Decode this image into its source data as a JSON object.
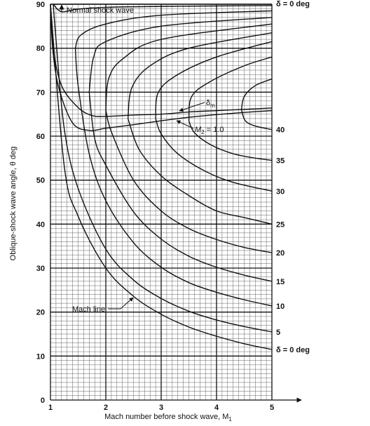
{
  "chart_data": {
    "type": "line",
    "title": "",
    "xlabel": "Mach number before shock wave, M",
    "xlabel_sub": "1",
    "ylabel": "Oblique-shock wave angle, θ deg",
    "xlim": [
      1,
      5
    ],
    "ylim": [
      0,
      90
    ],
    "xticks": [
      "1",
      "2",
      "3",
      "4",
      "5"
    ],
    "yticks": [
      "0",
      "10",
      "20",
      "30",
      "40",
      "50",
      "60",
      "70",
      "80",
      "90"
    ],
    "grid": true,
    "series": [
      {
        "name": "δ = 0 deg",
        "label_top": "δ = 0 deg",
        "label_right": "δ = 0 deg",
        "weak": [
          [
            1.0,
            90
          ],
          [
            1.25,
            53.1
          ],
          [
            1.5,
            41.8
          ],
          [
            2,
            30
          ],
          [
            2.5,
            23.6
          ],
          [
            3,
            19.5
          ],
          [
            3.5,
            16.6
          ],
          [
            4,
            14.5
          ],
          [
            4.5,
            12.8
          ],
          [
            5,
            11.5
          ]
        ],
        "strong": [
          [
            1.0,
            90
          ],
          [
            5,
            90
          ]
        ]
      },
      {
        "name": "5",
        "label_right": "5",
        "weak": [
          [
            1.05,
            90
          ],
          [
            1.1,
            82
          ],
          [
            1.25,
            61.6
          ],
          [
            1.5,
            48.1
          ],
          [
            2,
            34.3
          ],
          [
            2.5,
            27.3
          ],
          [
            3,
            23.1
          ],
          [
            3.5,
            20.2
          ],
          [
            4,
            18.2
          ],
          [
            4.5,
            16.7
          ],
          [
            5,
            15.5
          ]
        ],
        "strong": [
          [
            1.05,
            90
          ],
          [
            1.2,
            88.3
          ],
          [
            1.5,
            88.9
          ],
          [
            2,
            89.3
          ],
          [
            3,
            89.5
          ],
          [
            5,
            89.7
          ]
        ]
      },
      {
        "name": "10",
        "label_right": "10",
        "weak": [
          [
            1.45,
            80
          ],
          [
            1.5,
            71.5
          ],
          [
            1.7,
            56
          ],
          [
            2,
            45.3
          ],
          [
            2.5,
            35.8
          ],
          [
            3,
            30.2
          ],
          [
            3.5,
            26.7
          ],
          [
            4,
            24.5
          ],
          [
            4.5,
            22.8
          ],
          [
            5,
            21.4
          ]
        ],
        "strong": [
          [
            1.45,
            80
          ],
          [
            1.55,
            83
          ],
          [
            2,
            85.5
          ],
          [
            3,
            87.5
          ],
          [
            5,
            88.5
          ]
        ]
      },
      {
        "name": "15",
        "label_right": "15",
        "weak": [
          [
            1.7,
            70
          ],
          [
            1.8,
            59.4
          ],
          [
            2,
            53.4
          ],
          [
            2.5,
            42.8
          ],
          [
            3,
            36.6
          ],
          [
            3.5,
            32.7
          ],
          [
            4,
            30.2
          ],
          [
            4.5,
            28.4
          ],
          [
            5,
            27
          ]
        ],
        "strong": [
          [
            1.7,
            70
          ],
          [
            1.78,
            78
          ],
          [
            2,
            81.5
          ],
          [
            3,
            85
          ],
          [
            5,
            87
          ]
        ]
      },
      {
        "name": "20",
        "label_right": "20",
        "weak": [
          [
            2.0,
            66
          ],
          [
            2.1,
            61
          ],
          [
            2.5,
            50
          ],
          [
            3,
            43
          ],
          [
            3.5,
            39
          ],
          [
            4,
            36.5
          ],
          [
            4.5,
            34.7
          ],
          [
            5,
            33.5
          ]
        ],
        "strong": [
          [
            2.0,
            66
          ],
          [
            2.05,
            73
          ],
          [
            2.3,
            77.5
          ],
          [
            3,
            82
          ],
          [
            5,
            85.5
          ]
        ]
      },
      {
        "name": "25",
        "label_right": "25",
        "weak": [
          [
            2.4,
            64
          ],
          [
            2.6,
            57
          ],
          [
            3,
            51
          ],
          [
            3.5,
            46.5
          ],
          [
            4,
            43
          ],
          [
            4.5,
            41.5
          ],
          [
            5,
            40
          ]
        ],
        "strong": [
          [
            2.4,
            64
          ],
          [
            2.47,
            71
          ],
          [
            2.8,
            76
          ],
          [
            3.5,
            80
          ],
          [
            5,
            83.5
          ]
        ]
      },
      {
        "name": "30",
        "label_right": "30",
        "weak": [
          [
            2.9,
            64
          ],
          [
            3,
            60.5
          ],
          [
            3.3,
            56
          ],
          [
            3.8,
            52
          ],
          [
            4.3,
            49.5
          ],
          [
            5,
            47.5
          ]
        ],
        "strong": [
          [
            2.9,
            64
          ],
          [
            2.95,
            70
          ],
          [
            3.3,
            74
          ],
          [
            4,
            78
          ],
          [
            5,
            81.5
          ]
        ]
      },
      {
        "name": "35",
        "label_right": "35",
        "weak": [
          [
            3.5,
            63.5
          ],
          [
            3.6,
            60.8
          ],
          [
            3.9,
            58
          ],
          [
            4.3,
            56
          ],
          [
            4.7,
            55
          ],
          [
            5,
            54.5
          ]
        ],
        "strong": [
          [
            3.5,
            63.5
          ],
          [
            3.55,
            69
          ],
          [
            3.9,
            72.5
          ],
          [
            4.5,
            76
          ],
          [
            5,
            78
          ]
        ]
      },
      {
        "name": "40",
        "label_right": "40",
        "weak": [
          [
            4.45,
            66
          ],
          [
            4.52,
            63.5
          ],
          [
            4.7,
            62.3
          ],
          [
            5,
            61.5
          ]
        ],
        "strong": [
          [
            4.45,
            66
          ],
          [
            4.5,
            69
          ],
          [
            4.7,
            71.5
          ],
          [
            5,
            73
          ]
        ]
      }
    ],
    "reference_lines": [
      {
        "name": "δm",
        "symbol": "δ",
        "subscript": "m",
        "points": [
          [
            1.0,
            90
          ],
          [
            1.05,
            80
          ],
          [
            1.2,
            71.5
          ],
          [
            1.5,
            66.5
          ],
          [
            1.75,
            64.7
          ],
          [
            2,
            64.5
          ],
          [
            2.5,
            64.8
          ],
          [
            3,
            65
          ],
          [
            3.5,
            65.5
          ],
          [
            4,
            65.8
          ],
          [
            4.5,
            66.1
          ],
          [
            5,
            66.4
          ]
        ]
      },
      {
        "name": "M2 = 1.0",
        "symbol": "M",
        "subscript": "2",
        "value_text": " = 1.0",
        "points": [
          [
            1.0,
            90
          ],
          [
            1.04,
            80
          ],
          [
            1.15,
            71
          ],
          [
            1.4,
            63
          ],
          [
            1.7,
            61.3
          ],
          [
            2,
            61.8
          ],
          [
            2.5,
            62.6
          ],
          [
            3,
            63.5
          ],
          [
            3.5,
            64.3
          ],
          [
            4,
            64.9
          ],
          [
            4.5,
            65.4
          ],
          [
            5,
            65.8
          ]
        ]
      }
    ],
    "annotations": [
      {
        "text": "Normal shock wave",
        "target": "top edge θ = 90",
        "arrow": true
      },
      {
        "text": "Mach line",
        "target": "δ = 0 deg weak branch",
        "arrow": true
      }
    ]
  }
}
